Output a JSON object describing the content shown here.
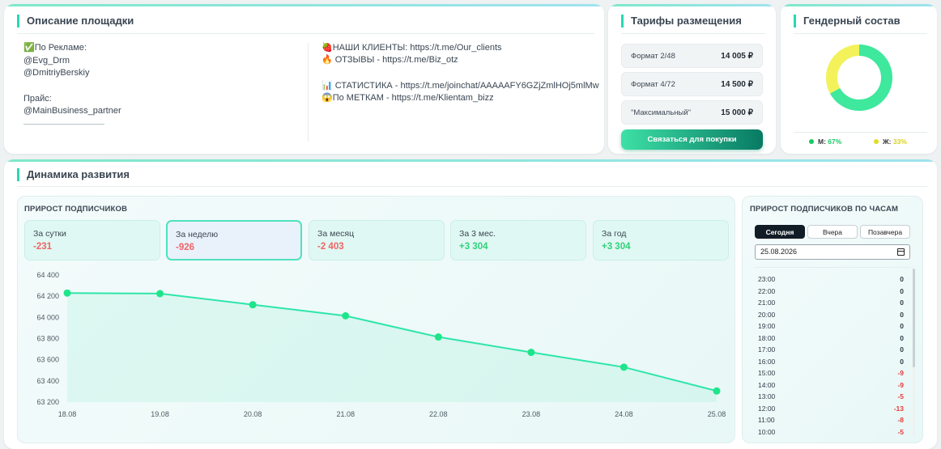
{
  "description": {
    "title": "Описание площадки",
    "ads_label": "✅По Рекламе:",
    "contact1": "@Evg_Drm",
    "contact2": "@DmitriyBerskiy",
    "price_label": "Прайс:",
    "price_contact": "@MainBusiness_partner",
    "clients": "🍓НАШИ КЛИЕНТЫ: https://t.me/Our_clients",
    "reviews": "🔥 ОТЗЫВЫ - https://t.me/Biz_otz",
    "stats": "📊 СТАТИСТИКА - https://t.me/joinchat/AAAAAFY6GZjZmlHOj5mlMw",
    "tags": "😱По МЕТКАМ - https://t.me/Klientam_bizz"
  },
  "tariffs": {
    "title": "Тарифы размещения",
    "items": [
      {
        "name": "Формат 2/48",
        "price": "14 005 ₽"
      },
      {
        "name": "Формат 4/72",
        "price": "14 500 ₽"
      },
      {
        "name": "\"Максимальный\"",
        "price": "15 000 ₽"
      }
    ],
    "button": "Связаться для покупки"
  },
  "gender": {
    "title": "Гендерный состав",
    "male_label": "М:",
    "male_value": "67%",
    "female_label": "Ж:",
    "female_value": "33%",
    "male_share": 67,
    "female_share": 33,
    "male_color": "#3ee89c",
    "female_color": "#f3f25a"
  },
  "dynamics": {
    "title": "Динамика развития",
    "growth_title": "ПРИРОСТ ПОДПИСЧИКОВ",
    "stats": [
      {
        "label": "За сутки",
        "value": "-231"
      },
      {
        "label": "За неделю",
        "value": "-926"
      },
      {
        "label": "За месяц",
        "value": "-2 403"
      },
      {
        "label": "За 3 мес.",
        "value": "+3 304"
      },
      {
        "label": "За год",
        "value": "+3 304"
      }
    ],
    "active_stat": "За неделю"
  },
  "chart_data": {
    "type": "line",
    "x": [
      "18.08",
      "19.08",
      "20.08",
      "21.08",
      "22.08",
      "23.08",
      "24.08",
      "25.08"
    ],
    "y": [
      64230,
      64225,
      64120,
      64015,
      63815,
      63670,
      63530,
      63305
    ],
    "ylim": [
      63200,
      64400
    ],
    "yticks": [
      "64 400",
      "64 200",
      "64 000",
      "63 800",
      "63 600",
      "63 400",
      "63 200"
    ],
    "ytick_values": [
      64400,
      64200,
      64000,
      63800,
      63600,
      63400,
      63200
    ],
    "color": "#2ee6a8",
    "grid": false
  },
  "hourly": {
    "title": "ПРИРОСТ ПОДПИСЧИКОВ ПО ЧАСАМ",
    "tabs": [
      "Сегодня",
      "Вчера",
      "Позавчера"
    ],
    "date": "25.08.2026",
    "rows": [
      {
        "hour": "23:00",
        "value": "0"
      },
      {
        "hour": "22:00",
        "value": "0"
      },
      {
        "hour": "21:00",
        "value": "0"
      },
      {
        "hour": "20:00",
        "value": "0"
      },
      {
        "hour": "19:00",
        "value": "0"
      },
      {
        "hour": "18:00",
        "value": "0"
      },
      {
        "hour": "17:00",
        "value": "0"
      },
      {
        "hour": "16:00",
        "value": "0"
      },
      {
        "hour": "15:00",
        "value": "-9"
      },
      {
        "hour": "14:00",
        "value": "-9"
      },
      {
        "hour": "13:00",
        "value": "-5"
      },
      {
        "hour": "12:00",
        "value": "-13"
      },
      {
        "hour": "11:00",
        "value": "-8"
      },
      {
        "hour": "10:00",
        "value": "-5"
      }
    ]
  }
}
